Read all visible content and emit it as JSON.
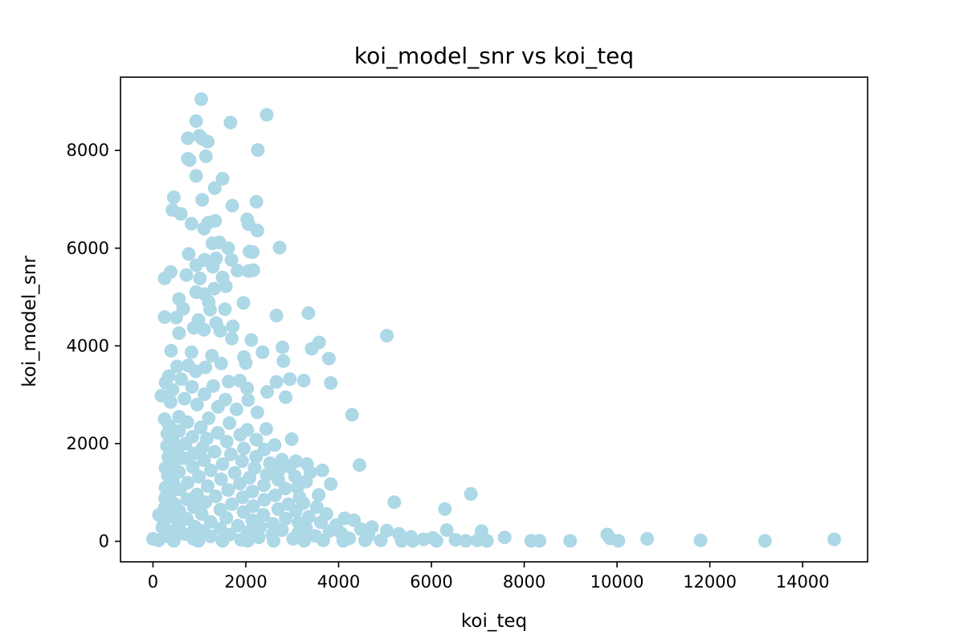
{
  "chart_data": {
    "type": "scatter",
    "title": "koi_model_snr vs koi_teq",
    "xlabel": "koi_teq",
    "ylabel": "koi_model_snr",
    "xlim": [
      -700,
      15400
    ],
    "ylim": [
      -420,
      9500
    ],
    "xticks": [
      0,
      2000,
      4000,
      6000,
      8000,
      10000,
      12000,
      14000
    ],
    "yticks": [
      0,
      2000,
      4000,
      6000,
      8000
    ],
    "grid": false,
    "legend": "none",
    "marker_color": "#add8e6",
    "points": [
      [
        1040,
        9050
      ],
      [
        2450,
        8730
      ],
      [
        930,
        8600
      ],
      [
        1670,
        8570
      ],
      [
        1000,
        8300
      ],
      [
        750,
        8250
      ],
      [
        1060,
        8240
      ],
      [
        1180,
        8180
      ],
      [
        2260,
        8010
      ],
      [
        1140,
        7880
      ],
      [
        750,
        7830
      ],
      [
        790,
        7800
      ],
      [
        930,
        7480
      ],
      [
        1500,
        7420
      ],
      [
        1330,
        7230
      ],
      [
        1060,
        6990
      ],
      [
        450,
        7040
      ],
      [
        2230,
        6950
      ],
      [
        1710,
        6870
      ],
      [
        420,
        6780
      ],
      [
        600,
        6700
      ],
      [
        2030,
        6590
      ],
      [
        1340,
        6560
      ],
      [
        1190,
        6520
      ],
      [
        2060,
        6490
      ],
      [
        830,
        6500
      ],
      [
        1100,
        6400
      ],
      [
        2250,
        6360
      ],
      [
        1430,
        6120
      ],
      [
        1280,
        6100
      ],
      [
        1620,
        6000
      ],
      [
        2730,
        6010
      ],
      [
        2080,
        5930
      ],
      [
        2150,
        5920
      ],
      [
        770,
        5880
      ],
      [
        1360,
        5790
      ],
      [
        1690,
        5760
      ],
      [
        1110,
        5760
      ],
      [
        930,
        5650
      ],
      [
        1290,
        5620
      ],
      [
        1820,
        5540
      ],
      [
        2060,
        5530
      ],
      [
        2160,
        5550
      ],
      [
        380,
        5510
      ],
      [
        250,
        5380
      ],
      [
        720,
        5450
      ],
      [
        1010,
        5380
      ],
      [
        1500,
        5400
      ],
      [
        1570,
        5220
      ],
      [
        1320,
        5170
      ],
      [
        930,
        5100
      ],
      [
        1110,
        5060
      ],
      [
        560,
        4960
      ],
      [
        1200,
        4900
      ],
      [
        1950,
        4880
      ],
      [
        650,
        4760
      ],
      [
        1230,
        4740
      ],
      [
        1550,
        4750
      ],
      [
        3350,
        4670
      ],
      [
        2660,
        4620
      ],
      [
        250,
        4590
      ],
      [
        500,
        4580
      ],
      [
        980,
        4530
      ],
      [
        1360,
        4470
      ],
      [
        1720,
        4400
      ],
      [
        880,
        4370
      ],
      [
        1100,
        4330
      ],
      [
        1450,
        4310
      ],
      [
        560,
        4260
      ],
      [
        1700,
        4150
      ],
      [
        2120,
        4120
      ],
      [
        5040,
        4210
      ],
      [
        3580,
        4070
      ],
      [
        3420,
        3940
      ],
      [
        2790,
        3970
      ],
      [
        2360,
        3870
      ],
      [
        390,
        3900
      ],
      [
        830,
        3870
      ],
      [
        1270,
        3800
      ],
      [
        1960,
        3770
      ],
      [
        3790,
        3740
      ],
      [
        2810,
        3690
      ],
      [
        2000,
        3650
      ],
      [
        520,
        3580
      ],
      [
        760,
        3600
      ],
      [
        1470,
        3640
      ],
      [
        1130,
        3560
      ],
      [
        920,
        3480
      ],
      [
        340,
        3380
      ],
      [
        610,
        3320
      ],
      [
        1630,
        3270
      ],
      [
        1870,
        3290
      ],
      [
        2660,
        3260
      ],
      [
        2950,
        3320
      ],
      [
        3250,
        3290
      ],
      [
        3830,
        3240
      ],
      [
        270,
        3250
      ],
      [
        840,
        3160
      ],
      [
        1300,
        3180
      ],
      [
        2030,
        3130
      ],
      [
        420,
        3100
      ],
      [
        2460,
        3060
      ],
      [
        1110,
        3010
      ],
      [
        2860,
        2950
      ],
      [
        180,
        2980
      ],
      [
        680,
        2920
      ],
      [
        1560,
        2900
      ],
      [
        2050,
        2890
      ],
      [
        380,
        2850
      ],
      [
        950,
        2800
      ],
      [
        1400,
        2750
      ],
      [
        1800,
        2700
      ],
      [
        4290,
        2590
      ],
      [
        2250,
        2640
      ],
      [
        560,
        2550
      ],
      [
        1200,
        2520
      ],
      [
        250,
        2500
      ],
      [
        740,
        2440
      ],
      [
        1650,
        2420
      ],
      [
        350,
        2360
      ],
      [
        1030,
        2330
      ],
      [
        2030,
        2280
      ],
      [
        2440,
        2300
      ],
      [
        560,
        2260
      ],
      [
        1400,
        2220
      ],
      [
        1880,
        2180
      ],
      [
        310,
        2200
      ],
      [
        850,
        2140
      ],
      [
        1160,
        2100
      ],
      [
        2230,
        2080
      ],
      [
        2990,
        2090
      ],
      [
        430,
        2050
      ],
      [
        1590,
        2040
      ],
      [
        700,
        2000
      ],
      [
        2620,
        1970
      ],
      [
        300,
        1950
      ],
      [
        1070,
        1920
      ],
      [
        1960,
        1900
      ],
      [
        2400,
        1880
      ],
      [
        520,
        1850
      ],
      [
        1330,
        1830
      ],
      [
        880,
        1800
      ],
      [
        1680,
        1780
      ],
      [
        2220,
        1730
      ],
      [
        330,
        1720
      ],
      [
        2780,
        1670
      ],
      [
        680,
        1700
      ],
      [
        3080,
        1640
      ],
      [
        1100,
        1660
      ],
      [
        1920,
        1640
      ],
      [
        460,
        1600
      ],
      [
        2520,
        1600
      ],
      [
        3320,
        1580
      ],
      [
        1500,
        1580
      ],
      [
        4450,
        1560
      ],
      [
        2950,
        1530
      ],
      [
        270,
        1500
      ],
      [
        860,
        1520
      ],
      [
        2190,
        1500
      ],
      [
        3650,
        1450
      ],
      [
        3390,
        1410
      ],
      [
        1250,
        1450
      ],
      [
        2710,
        1440
      ],
      [
        560,
        1420
      ],
      [
        1760,
        1400
      ],
      [
        2450,
        1360
      ],
      [
        320,
        1350
      ],
      [
        3060,
        1330
      ],
      [
        3830,
        1170
      ],
      [
        990,
        1320
      ],
      [
        2080,
        1300
      ],
      [
        1470,
        1270
      ],
      [
        2700,
        1260
      ],
      [
        430,
        1240
      ],
      [
        3300,
        1220
      ],
      [
        750,
        1200
      ],
      [
        1870,
        1180
      ],
      [
        3110,
        1100
      ],
      [
        2390,
        1150
      ],
      [
        1180,
        1130
      ],
      [
        270,
        1100
      ],
      [
        2850,
        1080
      ],
      [
        580,
        1060
      ],
      [
        1620,
        1050
      ],
      [
        3570,
        950
      ],
      [
        6850,
        970
      ],
      [
        2140,
        1020
      ],
      [
        380,
        980
      ],
      [
        950,
        960
      ],
      [
        2630,
        940
      ],
      [
        3160,
        900
      ],
      [
        1350,
        920
      ],
      [
        1930,
        900
      ],
      [
        260,
        880
      ],
      [
        740,
        860
      ],
      [
        2400,
        850
      ],
      [
        5200,
        800
      ],
      [
        3240,
        780
      ],
      [
        2920,
        760
      ],
      [
        1130,
        800
      ],
      [
        470,
        760
      ],
      [
        1700,
        760
      ],
      [
        2160,
        720
      ],
      [
        3530,
        700
      ],
      [
        880,
        700
      ],
      [
        250,
        680
      ],
      [
        6290,
        660
      ],
      [
        2700,
        660
      ],
      [
        1450,
        650
      ],
      [
        3080,
        620
      ],
      [
        570,
        620
      ],
      [
        3740,
        560
      ],
      [
        1950,
        600
      ],
      [
        130,
        540
      ],
      [
        1050,
        560
      ],
      [
        2380,
        540
      ],
      [
        3360,
        500
      ],
      [
        380,
        500
      ],
      [
        4130,
        470
      ],
      [
        4330,
        430
      ],
      [
        1580,
        480
      ],
      [
        2860,
        460
      ],
      [
        730,
        460
      ],
      [
        2140,
        430
      ],
      [
        3620,
        390
      ],
      [
        3140,
        380
      ],
      [
        240,
        400
      ],
      [
        1240,
        400
      ],
      [
        2580,
        360
      ],
      [
        3950,
        330
      ],
      [
        4720,
        290
      ],
      [
        560,
        340
      ],
      [
        1830,
        320
      ],
      [
        900,
        300
      ],
      [
        2310,
        290
      ],
      [
        3300,
        270
      ],
      [
        4480,
        250
      ],
      [
        200,
        280
      ],
      [
        1450,
        260
      ],
      [
        2780,
        230
      ],
      [
        5040,
        220
      ],
      [
        6330,
        230
      ],
      [
        3800,
        210
      ],
      [
        7080,
        210
      ],
      [
        1080,
        210
      ],
      [
        430,
        200
      ],
      [
        2040,
        190
      ],
      [
        4060,
        160
      ],
      [
        3130,
        170
      ],
      [
        5300,
        150
      ],
      [
        9790,
        140
      ],
      [
        680,
        150
      ],
      [
        1660,
        140
      ],
      [
        2570,
        140
      ],
      [
        4640,
        120
      ],
      [
        5560,
        90
      ],
      [
        330,
        100
      ],
      [
        3500,
        110
      ],
      [
        1240,
        100
      ],
      [
        6030,
        70
      ],
      [
        7580,
        80
      ],
      [
        2280,
        80
      ],
      [
        4230,
        60
      ],
      [
        10650,
        50
      ],
      [
        14680,
        40
      ],
      [
        0,
        50
      ],
      [
        870,
        50
      ],
      [
        3020,
        50
      ],
      [
        5830,
        40
      ],
      [
        6520,
        30
      ],
      [
        9850,
        60
      ],
      [
        11800,
        20
      ],
      [
        120,
        20
      ],
      [
        1900,
        30
      ],
      [
        3670,
        20
      ],
      [
        4910,
        20
      ],
      [
        6740,
        10
      ],
      [
        8150,
        10
      ],
      [
        8330,
        10
      ],
      [
        8990,
        10
      ],
      [
        10030,
        10
      ],
      [
        13190,
        10
      ],
      [
        2600,
        10
      ],
      [
        450,
        10
      ],
      [
        1500,
        10
      ],
      [
        6990,
        20
      ],
      [
        7200,
        10
      ],
      [
        5360,
        10
      ],
      [
        4100,
        10
      ],
      [
        3260,
        10
      ],
      [
        6110,
        10
      ],
      [
        4570,
        20
      ],
      [
        2040,
        10
      ],
      [
        980,
        10
      ],
      [
        5600,
        10
      ]
    ]
  }
}
